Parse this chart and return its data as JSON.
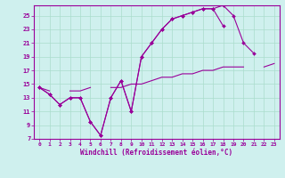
{
  "xlabel": "Windchill (Refroidissement éolien,°C)",
  "background_color": "#cff0ee",
  "grid_color": "#aaddcc",
  "line_color": "#990099",
  "xlim": [
    -0.5,
    23.5
  ],
  "ylim": [
    7,
    26.5
  ],
  "xticks": [
    0,
    1,
    2,
    3,
    4,
    5,
    6,
    7,
    8,
    9,
    10,
    11,
    12,
    13,
    14,
    15,
    16,
    17,
    18,
    19,
    20,
    21,
    22,
    23
  ],
  "yticks": [
    7,
    9,
    11,
    13,
    15,
    17,
    19,
    21,
    23,
    25
  ],
  "series": [
    {
      "x": [
        0,
        1,
        2,
        3,
        4,
        5,
        6,
        7,
        8,
        9,
        10,
        11,
        12,
        13,
        14,
        15,
        16,
        17,
        18,
        19,
        20,
        21,
        22,
        23
      ],
      "y": [
        14.5,
        13.5,
        12,
        13,
        13,
        9.5,
        7.5,
        13,
        15.5,
        11,
        19,
        21,
        23,
        24.5,
        25,
        25.5,
        26,
        26,
        26.5,
        25,
        21,
        19.5,
        null,
        null
      ],
      "has_markers": true
    },
    {
      "x": [
        0,
        1,
        2,
        3,
        4,
        5,
        6,
        7,
        8,
        9,
        10,
        11,
        12,
        13,
        14,
        15,
        16,
        17,
        18,
        19,
        20,
        21,
        22,
        23
      ],
      "y": [
        14.5,
        13.5,
        12,
        13,
        13,
        9.5,
        7.5,
        13,
        15.5,
        11,
        19,
        21,
        23,
        24.5,
        25,
        25.5,
        26,
        26,
        23.5,
        null,
        null,
        null,
        null,
        null
      ],
      "has_markers": true
    },
    {
      "x": [
        0,
        1,
        2,
        3,
        4,
        5,
        6,
        7,
        8,
        9,
        10,
        11,
        12,
        13,
        14,
        15,
        16,
        17,
        18,
        19,
        20,
        21,
        22,
        23
      ],
      "y": [
        14.5,
        14,
        null,
        14,
        14,
        14.5,
        null,
        14.5,
        14.5,
        15,
        15,
        15.5,
        16,
        16,
        16.5,
        16.5,
        17,
        17,
        17.5,
        17.5,
        17.5,
        null,
        17.5,
        18
      ],
      "has_markers": false
    }
  ]
}
